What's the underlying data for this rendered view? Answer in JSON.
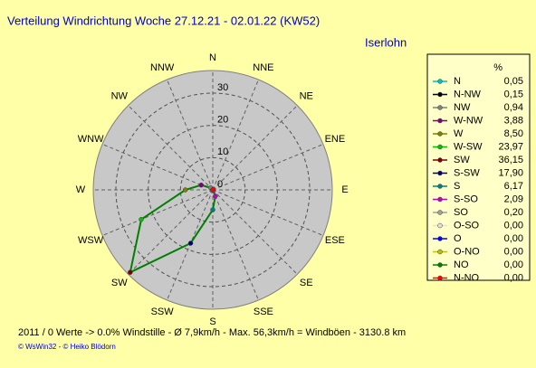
{
  "chart_data": {
    "type": "radar",
    "title": "Verteilung Windrichtung   Woche 27.12.21 - 02.01.22 (KW52)",
    "station": "Iserlohn",
    "angle_labels": [
      "N",
      "NNE",
      "NE",
      "ENE",
      "E",
      "ESE",
      "SE",
      "SSE",
      "S",
      "SSW",
      "SW",
      "WSW",
      "W",
      "WNW",
      "NW",
      "NNW"
    ],
    "legend_header": "%",
    "categories": [
      "N",
      "N-NW",
      "NW",
      "W-NW",
      "W",
      "W-SW",
      "SW",
      "S-SW",
      "S",
      "S-SO",
      "SO",
      "O-SO",
      "O",
      "O-NO",
      "NO",
      "N-NO"
    ],
    "values": [
      0.05,
      0.15,
      0.94,
      3.88,
      8.5,
      23.97,
      36.15,
      17.9,
      6.17,
      2.09,
      0.2,
      0,
      0,
      0,
      0,
      0
    ],
    "value_labels": [
      "0,05",
      "0,15",
      "0,94",
      "3,88",
      "8,50",
      "23,97",
      "36,15",
      "17,90",
      "6,17",
      "2,09",
      "0,20",
      "0,00",
      "0,00",
      "0,00",
      "0,00",
      "0,00"
    ],
    "colors": [
      "#00c0c0",
      "#000000",
      "#808080",
      "#800080",
      "#808000",
      "#00c000",
      "#800000",
      "#000080",
      "#008080",
      "#c000c0",
      "#a0a0a0",
      "#e0e0e0",
      "#0000ff",
      "#c0c000",
      "#008000",
      "#ff0000"
    ],
    "line_color": "#008000",
    "rlim": [
      0,
      37
    ],
    "rticks": [
      0,
      10,
      20,
      30
    ],
    "footer": "2011 / 0 Werte  -> 0.0% Windstille   -   Ø 7,9km/h  -  Max. 56,3km/h = Windböen   -   3130.8 km",
    "credit": "© WsWin32  - © Heiko Blödorn"
  }
}
